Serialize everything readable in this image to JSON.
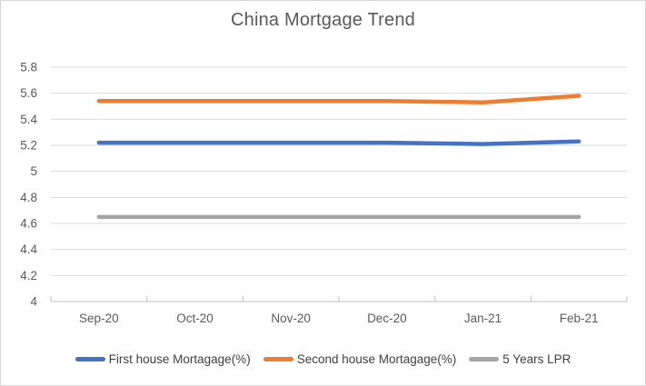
{
  "chart_data": {
    "type": "line",
    "title": "China Mortgage Trend",
    "categories": [
      "Sep-20",
      "Oct-20",
      "Nov-20",
      "Dec-20",
      "Jan-21",
      "Feb-21"
    ],
    "series": [
      {
        "name": "First house Mortagage(%)",
        "color": "#4472C4",
        "values": [
          5.22,
          5.22,
          5.22,
          5.22,
          5.21,
          5.23
        ]
      },
      {
        "name": "Second house Mortagage(%)",
        "color": "#ED7D31",
        "values": [
          5.54,
          5.54,
          5.54,
          5.54,
          5.53,
          5.58
        ]
      },
      {
        "name": "5 Years LPR",
        "color": "#A5A5A5",
        "values": [
          4.65,
          4.65,
          4.65,
          4.65,
          4.65,
          4.65
        ]
      }
    ],
    "ylim": [
      4,
      5.8
    ],
    "ytick_step": 0.2,
    "yticks": [
      "5.8",
      "5.6",
      "5.4",
      "5.2",
      "5",
      "4.8",
      "4.6",
      "4.4",
      "4.2",
      "4"
    ],
    "grid": true,
    "legend_position": "bottom",
    "colors": {
      "gridline": "#D9D9D9",
      "axis_line": "#BFBFBF",
      "tick_label": "#595959",
      "title_text": "#595959",
      "legend_text": "#3f3f3f",
      "background": "#FFFFFF"
    }
  }
}
